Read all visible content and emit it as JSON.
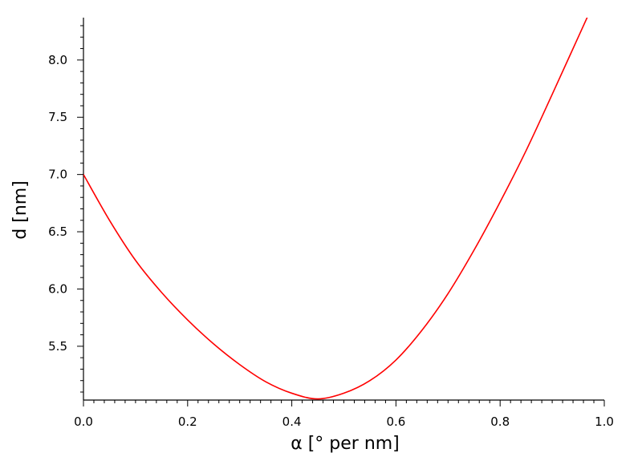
{
  "chart_data": {
    "type": "line",
    "xlabel": "α [° per nm]",
    "ylabel": "d [nm]",
    "xlim": [
      0.0,
      1.0
    ],
    "ylim": [
      5.03,
      8.37
    ],
    "grid": false,
    "x_ticks": [
      0.0,
      0.2,
      0.4,
      0.6,
      0.8,
      1.0
    ],
    "x_tick_labels": [
      "0.0",
      "0.2",
      "0.4",
      "0.6",
      "0.8",
      "1.0"
    ],
    "y_ticks": [
      5.5,
      6.0,
      6.5,
      7.0,
      7.5,
      8.0
    ],
    "y_tick_labels": [
      "5.5",
      "6.0",
      "6.5",
      "7.0",
      "7.5",
      "8.0"
    ],
    "series": [
      {
        "color": "#ff0000",
        "x": [
          0.0,
          0.05,
          0.1,
          0.15,
          0.2,
          0.25,
          0.3,
          0.35,
          0.4,
          0.45,
          0.5,
          0.55,
          0.6,
          0.65,
          0.7,
          0.75,
          0.8,
          0.85,
          0.9,
          0.95,
          1.0
        ],
        "y": [
          7.0,
          6.6,
          6.25,
          5.97,
          5.73,
          5.52,
          5.34,
          5.19,
          5.09,
          5.04,
          5.09,
          5.2,
          5.38,
          5.64,
          5.96,
          6.34,
          6.76,
          7.21,
          7.7,
          8.2,
          8.7
        ]
      }
    ]
  }
}
